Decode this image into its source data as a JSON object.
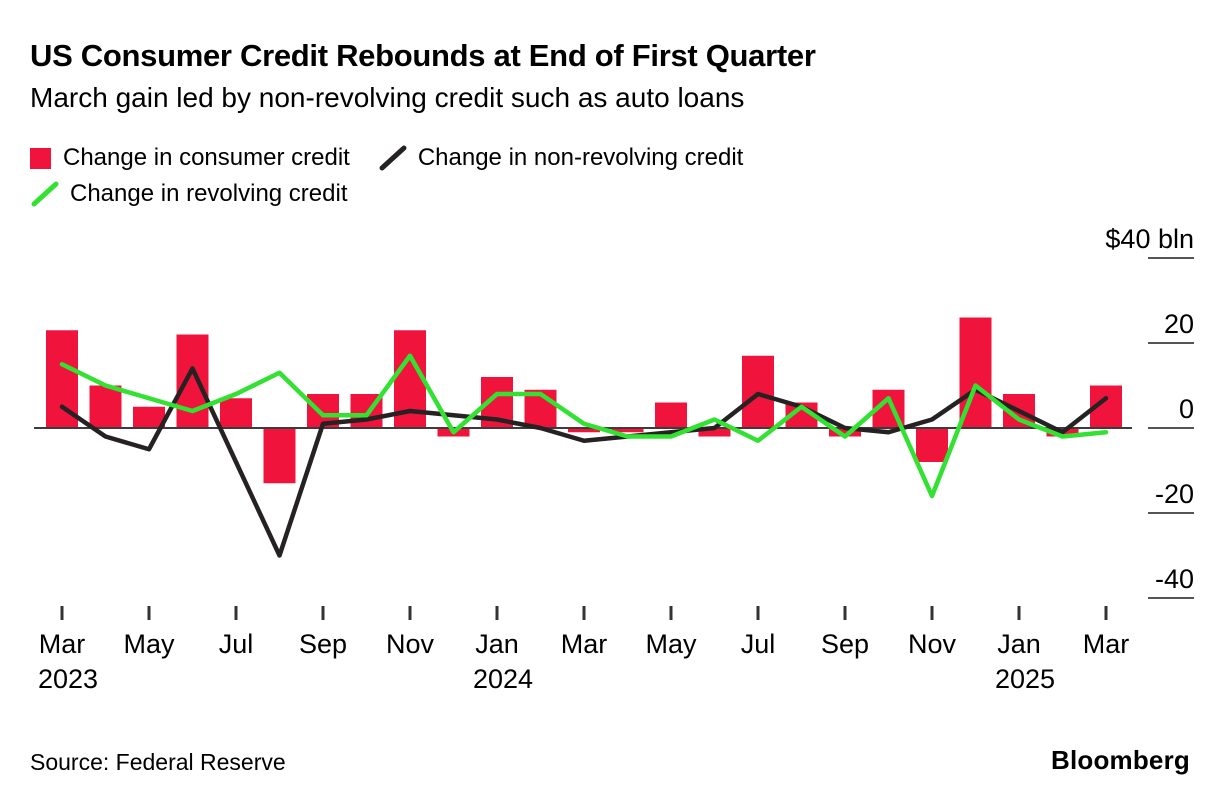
{
  "header": {
    "title": "US Consumer Credit Rebounds at End of First Quarter",
    "subtitle": "March gain led by non-revolving credit such as auto loans"
  },
  "legend": [
    {
      "label": "Change in consumer credit",
      "type": "bar",
      "color": "#f0143c"
    },
    {
      "label": "Change in non-revolving credit",
      "type": "line",
      "color": "#262223"
    },
    {
      "label": "Change in revolving credit",
      "type": "line",
      "color": "#32e132"
    }
  ],
  "chart_data": {
    "type": "bar",
    "title": "US Consumer Credit Rebounds at End of First Quarter",
    "subtitle": "March gain led by non-revolving credit such as auto loans",
    "ylabel": "$ bln",
    "ylim": [
      -45,
      45
    ],
    "grid": "right-side tick segments only, dark zero baseline across plot",
    "legend_position": "top-left",
    "x": [
      "Mar 2023",
      "Apr 2023",
      "May 2023",
      "Jun 2023",
      "Jul 2023",
      "Aug 2023",
      "Sep 2023",
      "Oct 2023",
      "Nov 2023",
      "Dec 2023",
      "Jan 2024",
      "Feb 2024",
      "Mar 2024",
      "Apr 2024",
      "May 2024",
      "Jun 2024",
      "Jul 2024",
      "Aug 2024",
      "Sep 2024",
      "Oct 2024",
      "Nov 2024",
      "Dec 2024",
      "Jan 2025",
      "Feb 2025",
      "Mar 2025"
    ],
    "series": [
      {
        "name": "Change in consumer credit",
        "type": "bar",
        "color": "#f0143c",
        "values": [
          23,
          10,
          5,
          22,
          7,
          -13,
          8,
          8,
          23,
          -2,
          12,
          9,
          -1,
          -1,
          6,
          -2,
          17,
          6,
          -2,
          9,
          -8,
          26,
          8,
          -2,
          10
        ]
      },
      {
        "name": "Change in non-revolving credit",
        "type": "line",
        "color": "#262223",
        "values": [
          5,
          -2,
          -5,
          14,
          -8,
          -30,
          1,
          2,
          4,
          3,
          2,
          0,
          -3,
          -2,
          -1,
          0,
          8,
          5,
          0,
          -1,
          2,
          9,
          4,
          -1,
          7
        ]
      },
      {
        "name": "Change in revolving credit",
        "type": "line",
        "color": "#32e132",
        "values": [
          15,
          10,
          7,
          4,
          8,
          13,
          3,
          3,
          17,
          -1,
          8,
          8,
          1,
          -2,
          -2,
          2,
          -3,
          5,
          -2,
          7,
          -16,
          10,
          2,
          -2,
          -1
        ]
      }
    ],
    "y_ticks": [
      {
        "label": "$40 bln",
        "value": 40
      },
      {
        "label": "20",
        "value": 20
      },
      {
        "label": "0",
        "value": 0
      },
      {
        "label": "-20",
        "value": -20
      },
      {
        "label": "-40",
        "value": -40
      }
    ],
    "x_ticks": [
      {
        "index": 0,
        "label": "Mar",
        "year": "2023"
      },
      {
        "index": 2,
        "label": "May"
      },
      {
        "index": 4,
        "label": "Jul"
      },
      {
        "index": 6,
        "label": "Sep"
      },
      {
        "index": 8,
        "label": "Nov"
      },
      {
        "index": 10,
        "label": "Jan",
        "year": "2024"
      },
      {
        "index": 12,
        "label": "Mar"
      },
      {
        "index": 14,
        "label": "May"
      },
      {
        "index": 16,
        "label": "Jul"
      },
      {
        "index": 18,
        "label": "Sep"
      },
      {
        "index": 20,
        "label": "Nov"
      },
      {
        "index": 22,
        "label": "Jan",
        "year": "2025"
      },
      {
        "index": 24,
        "label": "Mar"
      }
    ]
  },
  "footer": {
    "source": "Source: Federal Reserve",
    "brand": "Bloomberg"
  }
}
